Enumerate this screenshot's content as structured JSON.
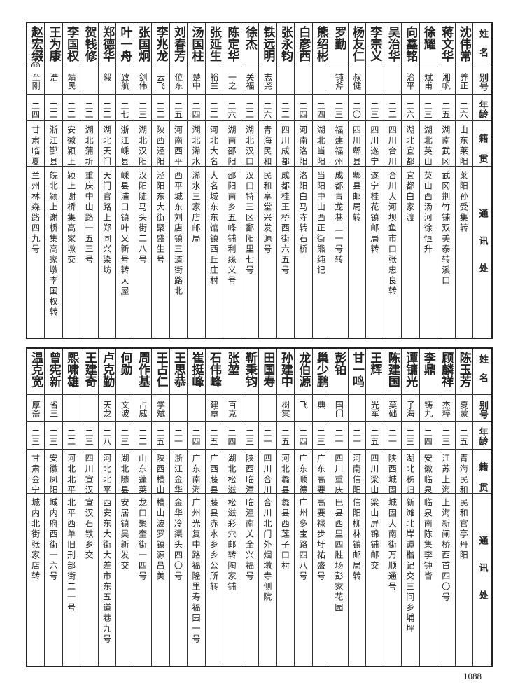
{
  "headers": {
    "name": "姓名",
    "alias": "别号",
    "age": "年龄",
    "native": "籍贯",
    "address": "通讯处"
  },
  "top_table": [
    {
      "name": "沈伟常",
      "alias": "养正",
      "age": "二六",
      "native": "山东莱阳",
      "address": "莱阳孙受集转"
    },
    {
      "name": "蒋文华",
      "alias": "湘帆",
      "age": "二五",
      "native": "湖南武冈",
      "address": "武冈荆竹铺双美泰转溪口"
    },
    {
      "name": "徐耀",
      "alias": "斌甫",
      "age": "二三",
      "native": "湖北英山",
      "address": "英山西汤河徐恒升"
    },
    {
      "name": "向鑫铭",
      "alias": "治平",
      "age": "二六",
      "native": "湖北宜都",
      "address": "宜都白家渡"
    },
    {
      "name": "吴治华",
      "alias": "",
      "age": "二二",
      "native": "四川合川",
      "address": "合川大河坝鱼市口张忠良转"
    },
    {
      "name": "李宗义",
      "alias": "",
      "age": "二三",
      "native": "四川遂宁",
      "address": "遂宁桂花镇邮局转"
    },
    {
      "name": "杨友仁",
      "alias": "叔健",
      "age": "二〇",
      "native": "四川郫县",
      "address": "郫县邮局转"
    },
    {
      "name": "罗勤",
      "alias": "钝斧",
      "age": "二三",
      "native": "福建福州",
      "address": "成都青龙巷二一号转"
    },
    {
      "name": "熊绍彬",
      "alias": "",
      "age": "二四",
      "native": "湖北当阳",
      "address": "当阳中山西正街熊纯记"
    },
    {
      "name": "白彦西",
      "alias": "",
      "age": "二四",
      "native": "河南洛阳",
      "address": "洛阳白马寺转石桥"
    },
    {
      "name": "张永钧",
      "alias": "",
      "age": "二二",
      "native": "四川成都",
      "address": "成都桂王桥西街六五号"
    },
    {
      "name": "铁远明",
      "alias": "志尧",
      "age": "二六",
      "native": "青海民和",
      "address": "民和享堂兴发源号"
    },
    {
      "name": "徐杰",
      "alias": "关福",
      "age": "二二",
      "native": "湖北汉口",
      "address": "汉口特三区鄱阳里七号"
    },
    {
      "name": "陈定华",
      "alias": "一之",
      "age": "二六",
      "native": "湖南邵阳",
      "address": "邵阳南乡五峰铺利缘义号"
    },
    {
      "name": "张延生",
      "alias": "裕兰",
      "age": "二二",
      "native": "河北大名",
      "address": "大名城东东馆镇西丘庄村"
    },
    {
      "name": "汤国柱",
      "alias": "楚中",
      "age": "二四",
      "native": "湖北浠水",
      "address": "浠水三家店邮局"
    },
    {
      "name": "刘春芳",
      "alias": "位东",
      "age": "二五",
      "native": "河南西平",
      "address": "西平城东刘店镇三道街路北"
    },
    {
      "name": "李兆龙",
      "alias": "云飞",
      "age": "二二",
      "native": "陕西泾阳",
      "address": "泾阳东大街聚盛生号"
    },
    {
      "name": "张国炯",
      "alias": "剑伟",
      "age": "二三",
      "native": "湖北汉阳",
      "address": "汉阳陡马头街二八号"
    },
    {
      "name": "叶一舟",
      "alias": "致航",
      "age": "二七",
      "native": "浙江嵊县",
      "address": "嵊县浦口镇叶又新号转大屋"
    },
    {
      "name": "郑德华",
      "alias": "毅",
      "age": "二二",
      "native": "湖北天门",
      "address": "天门官路上郑同兴染坊"
    },
    {
      "name": "贺钱修",
      "alias": "",
      "age": "二二",
      "native": "湖北蒲圻",
      "address": "重庆中山路一五三号"
    },
    {
      "name": "李国权",
      "alias": "靖民",
      "age": "二二",
      "native": "安徽颍上",
      "address": "颍上谢桥集高家墩交"
    },
    {
      "name": "王为康",
      "alias": "浩",
      "age": "二二",
      "native": "浙江鄞县",
      "address": "皖北颍上谢桥集高家墩李国权转"
    },
    {
      "name": "赵宏缀",
      "note": "⑱",
      "alias": "至刚",
      "age": "二四",
      "native": "甘肃临夏",
      "address": "兰州林森路四九号"
    }
  ],
  "bottom_table": [
    {
      "name": "陈玉芳",
      "alias": "夏蒙",
      "age": "二五",
      "native": "青海民和",
      "address": "民和官亭丹阳"
    },
    {
      "name": "顾麟祥",
      "alias": "杰粹",
      "age": "二三",
      "native": "江苏上海",
      "address": "上海新闸桥西首四〇号"
    },
    {
      "name": "李鼎",
      "alias": "铸九",
      "age": "二四",
      "native": "安徽临泉",
      "address": "临泉南陈集李钟皆"
    },
    {
      "name": "谭镛光",
      "alias": "子海",
      "age": "二三",
      "native": "湖北秭归",
      "address": "新滩北岸谭楷记交三间乡埔坪"
    },
    {
      "name": "陈建国",
      "alias": "莫础",
      "age": "二一",
      "native": "陕西城固",
      "address": "城固大南街万顺通号"
    },
    {
      "name": "王辉",
      "alias": "光军",
      "age": "二五",
      "native": "四川梁山",
      "address": "梁山屏锦铺邮交"
    },
    {
      "name": "甘一鸣",
      "alias": "",
      "age": "二一",
      "native": "河南信阳",
      "address": "信阳柳林镇邮局转"
    },
    {
      "name": "彭铂",
      "alias": "国门",
      "age": "二一",
      "native": "四川重庆",
      "address": "巴县西里四胜场彭家花园"
    },
    {
      "name": "巢少鹏",
      "alias": "典",
      "age": "二三",
      "native": "广东高要",
      "address": "高要禄步圩祐盛号"
    },
    {
      "name": "龙伯源",
      "alias": "飞",
      "age": "二四",
      "native": "广东顺德",
      "address": "广州多宝路四八号"
    },
    {
      "name": "孙建中",
      "alias": "树棠",
      "age": "二五",
      "native": "河北蠡县",
      "address": "蠡县西莲子口村"
    },
    {
      "name": "田国寿",
      "alias": "",
      "age": "二一",
      "native": "四川合川",
      "address": "合川北门外烟墩寺侧院"
    },
    {
      "name": "靳秉钧",
      "alias": "",
      "age": "二三",
      "native": "陕西临潼",
      "address": "临潼南关全兴福号"
    },
    {
      "name": "张堃",
      "alias": "百克",
      "age": "二四",
      "native": "湖北松滋",
      "address": "松滋彩穴邮转陶家铺"
    },
    {
      "name": "石伟峰",
      "alias": "建章",
      "age": "二五",
      "native": "广西藤县",
      "address": "藤县赤水乡乡公所转"
    },
    {
      "name": "崔挺峰",
      "alias": "",
      "age": "二四",
      "native": "广东南海",
      "address": "广州光复中路福隆里寿福园一号"
    },
    {
      "name": "王思恭",
      "alias": "",
      "age": "二一",
      "native": "浙江金华",
      "address": "金华冷渠头四〇号"
    },
    {
      "name": "王占仁",
      "alias": "学斌",
      "age": "二五",
      "native": "陕西横山",
      "address": "横山波罗镇源昌美"
    },
    {
      "name": "周作基",
      "alias": "占威",
      "age": "二二",
      "native": "山东蓬莱",
      "address": "龙口聚奎街一四号"
    },
    {
      "name": "何勋",
      "alias": "文波",
      "age": "二三",
      "native": "湖北随县",
      "address": "安居镇吴新发交"
    },
    {
      "name": "卢克勤",
      "alias": "天龙",
      "age": "二八",
      "native": "河北北平",
      "address": "西安东大街大差市东五道巷九号"
    },
    {
      "name": "王建奇",
      "alias": "",
      "age": "二三",
      "native": "四川宣汉",
      "address": "宣汉石铁乡交"
    },
    {
      "name": "熙啸雄",
      "alias": "",
      "age": "二二",
      "native": "河北北平",
      "address": "北平西单旧刑部街二一号"
    },
    {
      "name": "曾宪新",
      "alias": "省三",
      "age": "二三",
      "native": "安徽凤阳",
      "address": "城内府西街一六号"
    },
    {
      "name": "温克宽",
      "alias": "厚斋",
      "age": "二三",
      "native": "甘肃会宁",
      "address": "城内北街张家店转"
    }
  ],
  "page_number": "1088"
}
